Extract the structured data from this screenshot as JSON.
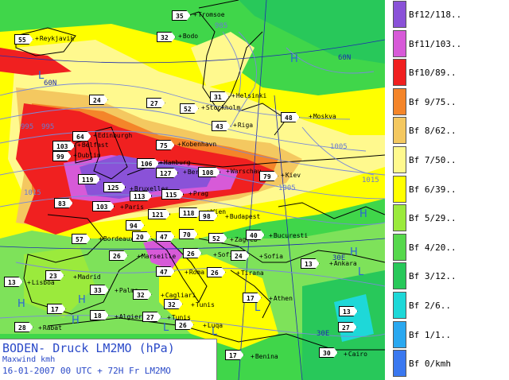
{
  "title": {
    "main": "BODEN- Druck LM2MO (hPa)",
    "sub": "Maxwind kmh",
    "run": "16-01-2007 00 UTC + 72H Fr LM2MO"
  },
  "legend": [
    {
      "label": "Bf12/118..",
      "color": "#8a52d8"
    },
    {
      "label": "Bf11/103..",
      "color": "#d75ad8"
    },
    {
      "label": "Bf10/89..",
      "color": "#f02020"
    },
    {
      "label": "Bf 9/75..",
      "color": "#f4852a"
    },
    {
      "label": "Bf 8/62..",
      "color": "#f4c860"
    },
    {
      "label": "Bf 7/50..",
      "color": "#fff98e"
    },
    {
      "label": "Bf 6/39..",
      "color": "#ffff00"
    },
    {
      "label": "Bf 5/29..",
      "color": "#9bea3c"
    },
    {
      "label": "Bf 4/20..",
      "color": "#56d84c"
    },
    {
      "label": "Bf 3/12..",
      "color": "#28c85a"
    },
    {
      "label": "Bf 2/6..",
      "color": "#1ed8d8"
    },
    {
      "label": "Bf 1/1..",
      "color": "#2aa8f0"
    },
    {
      "label": "Bf 0/kmh",
      "color": "#3a78f0"
    }
  ],
  "isobars": [
    "995",
    "985",
    "995",
    "1005",
    "1005",
    "1015",
    "1015"
  ],
  "lat_labels": [
    "60N",
    "60N",
    "30E",
    "30E"
  ],
  "pressure_centres": [
    "L",
    "H",
    "H",
    "H",
    "H",
    "H",
    "L",
    "L",
    "L",
    "L",
    "H"
  ],
  "stations": [
    {
      "id": "st-35",
      "value": "35",
      "city": "Tromsoe"
    },
    {
      "id": "st-55",
      "value": "55",
      "city": "Reykjavik"
    },
    {
      "id": "st-32a",
      "value": "32",
      "city": "Bodo"
    },
    {
      "id": "st-24a",
      "value": "24",
      "city": ""
    },
    {
      "id": "st-27a",
      "value": "27",
      "city": ""
    },
    {
      "id": "st-31",
      "value": "31",
      "city": "Helsinki"
    },
    {
      "id": "st-52a",
      "value": "52",
      "city": "Stockholm"
    },
    {
      "id": "st-48",
      "value": "48",
      "city": "Moskva"
    },
    {
      "id": "st-43",
      "value": "43",
      "city": "Riga"
    },
    {
      "id": "st-64",
      "value": "64",
      "city": "Edinburgh"
    },
    {
      "id": "st-103a",
      "value": "103",
      "city": "Belfast"
    },
    {
      "id": "st-75",
      "value": "75",
      "city": "Kobenhavn"
    },
    {
      "id": "st-99",
      "value": "99",
      "city": "Dublin"
    },
    {
      "id": "st-106",
      "value": "106",
      "city": "Hamburg"
    },
    {
      "id": "st-127",
      "value": "127",
      "city": "Berlin"
    },
    {
      "id": "st-108",
      "value": "108",
      "city": "Warschau"
    },
    {
      "id": "st-79",
      "value": "79",
      "city": "Kiev"
    },
    {
      "id": "st-119",
      "value": "119",
      "city": ""
    },
    {
      "id": "st-125",
      "value": "125",
      "city": "Bruxelles"
    },
    {
      "id": "st-113",
      "value": "113",
      "city": ""
    },
    {
      "id": "st-115",
      "value": "115",
      "city": "Prag"
    },
    {
      "id": "st-83",
      "value": "83",
      "city": ""
    },
    {
      "id": "st-103b",
      "value": "103",
      "city": "Paris"
    },
    {
      "id": "st-121",
      "value": "121",
      "city": ""
    },
    {
      "id": "st-118",
      "value": "118",
      "city": "Wien"
    },
    {
      "id": "st-98",
      "value": "98",
      "city": "Budapest"
    },
    {
      "id": "st-94",
      "value": "94",
      "city": ""
    },
    {
      "id": "st-57",
      "value": "57",
      "city": "Bordeaux"
    },
    {
      "id": "st-20",
      "value": "20",
      "city": ""
    },
    {
      "id": "st-47a",
      "value": "47",
      "city": ""
    },
    {
      "id": "st-70",
      "value": "70",
      "city": ""
    },
    {
      "id": "st-52b",
      "value": "52",
      "city": "Zagreb"
    },
    {
      "id": "st-40",
      "value": "40",
      "city": "Bucuresti"
    },
    {
      "id": "st-26a",
      "value": "26",
      "city": "Marseille"
    },
    {
      "id": "st-26b",
      "value": "26",
      "city": "Sofia"
    },
    {
      "id": "st-24b",
      "value": "24",
      "city": "Sofia"
    },
    {
      "id": "st-13a",
      "value": "13",
      "city": "Ankara"
    },
    {
      "id": "st-13b",
      "value": "13",
      "city": "Lisboa"
    },
    {
      "id": "st-23",
      "value": "23",
      "city": "Madrid"
    },
    {
      "id": "st-47b",
      "value": "47",
      "city": "Roma"
    },
    {
      "id": "st-26c",
      "value": "26",
      "city": "Tirana"
    },
    {
      "id": "st-33",
      "value": "33",
      "city": "Palma"
    },
    {
      "id": "st-32b",
      "value": "32",
      "city": "Cagliari"
    },
    {
      "id": "st-17a",
      "value": "17",
      "city": "Athen"
    },
    {
      "id": "st-17b",
      "value": "17",
      "city": ""
    },
    {
      "id": "st-32c",
      "value": "32",
      "city": "Tunis"
    },
    {
      "id": "st-18",
      "value": "18",
      "city": "Algier"
    },
    {
      "id": "st-27b",
      "value": "27",
      "city": "Tunis"
    },
    {
      "id": "st-13c",
      "value": "13",
      "city": ""
    },
    {
      "id": "st-28",
      "value": "28",
      "city": "Rabat"
    },
    {
      "id": "st-26d",
      "value": "26",
      "city": "Luqa"
    },
    {
      "id": "st-27c",
      "value": "27",
      "city": ""
    },
    {
      "id": "st-17c",
      "value": "17",
      "city": "Benina"
    },
    {
      "id": "st-30",
      "value": "30",
      "city": "Cairo"
    }
  ]
}
